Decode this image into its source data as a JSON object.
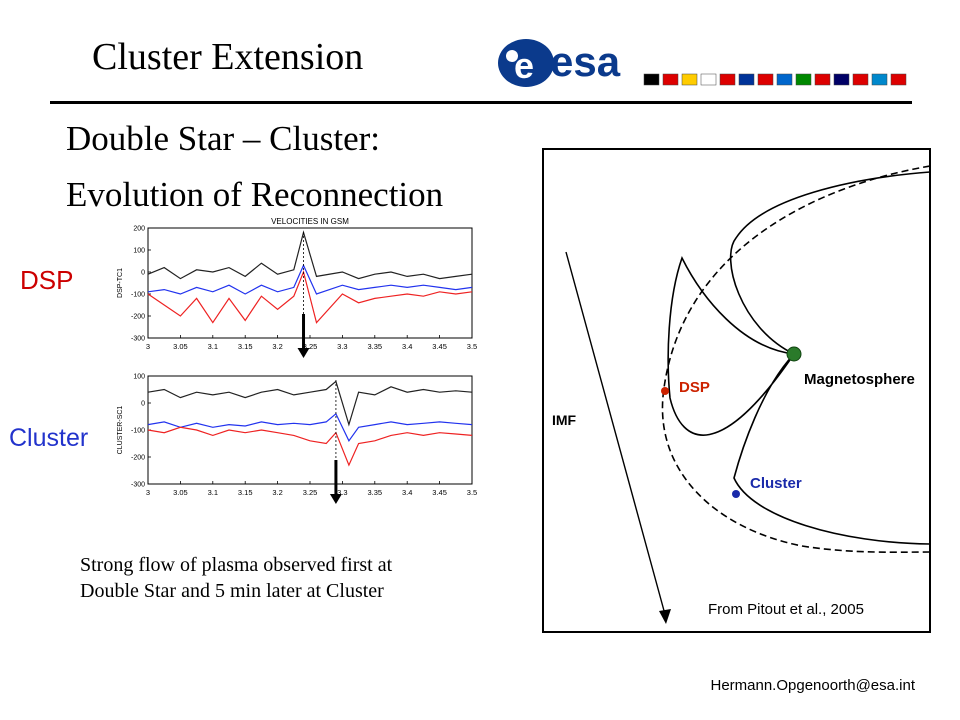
{
  "slide": {
    "title": "Cluster Extension",
    "subtitle_line1": "Double Star – Cluster:",
    "subtitle_line2": "Evolution of Reconnection",
    "caption_line1": "Strong flow of plasma observed first at",
    "caption_line2": "Double Star and 5 min later at Cluster",
    "footer_email": "Hermann.Opgenoorth@esa.int"
  },
  "logo": {
    "text": "esa",
    "color": "#0b3a8c"
  },
  "diagram": {
    "imf_label": "IMF",
    "dsp_label": "DSP",
    "cluster_label": "Cluster",
    "magnetosphere_label": "Magnetosphere",
    "credit": "From Pitout et al., 2005",
    "dsp_color": "#cc2200",
    "cluster_color": "#1a2aaa"
  },
  "chart_data": [
    {
      "type": "line",
      "panel_label": "DSP",
      "title": "VELOCITIES IN GSM",
      "ylabel": "DSP-TC1",
      "xlim": [
        3,
        3.5
      ],
      "ylim": [
        -300,
        200
      ],
      "xticks": [
        "3",
        "3.05",
        "3.1",
        "3.15",
        "3.2",
        "3.25",
        "3.3",
        "3.35",
        "3.4",
        "3.45",
        "3.5"
      ],
      "yticks": [
        "200",
        "100",
        "0",
        "-100",
        "-200",
        "-300"
      ],
      "x": [
        3.0,
        3.025,
        3.05,
        3.075,
        3.1,
        3.125,
        3.15,
        3.175,
        3.2,
        3.225,
        3.24,
        3.26,
        3.3,
        3.325,
        3.35,
        3.375,
        3.4,
        3.425,
        3.45,
        3.475,
        3.5
      ],
      "series": [
        {
          "color": "#222222",
          "values": [
            -10,
            20,
            -30,
            10,
            0,
            20,
            -20,
            40,
            -10,
            10,
            180,
            -20,
            0,
            -30,
            -10,
            0,
            -20,
            -10,
            -30,
            -20,
            -10
          ]
        },
        {
          "color": "#2233ee",
          "values": [
            -90,
            -80,
            -100,
            -70,
            -90,
            -60,
            -100,
            -60,
            -90,
            -70,
            30,
            -100,
            -60,
            -80,
            -70,
            -60,
            -70,
            -60,
            -70,
            -80,
            -70
          ]
        },
        {
          "color": "#ee2222",
          "values": [
            -100,
            -150,
            -200,
            -120,
            -230,
            -120,
            -220,
            -110,
            -170,
            -110,
            0,
            -230,
            -100,
            -140,
            -120,
            -110,
            -100,
            -110,
            -90,
            -100,
            -90
          ]
        }
      ],
      "arrow_x": 3.24
    },
    {
      "type": "line",
      "panel_label": "Cluster",
      "ylabel": "CLUSTER-SC1",
      "xlim": [
        3,
        3.5
      ],
      "ylim": [
        -300,
        100
      ],
      "xticks": [
        "3",
        "3.05",
        "3.1",
        "3.15",
        "3.2",
        "3.25",
        "3.3",
        "3.35",
        "3.4",
        "3.45",
        "3.5"
      ],
      "yticks": [
        "100",
        "0",
        "-100",
        "-200",
        "-300"
      ],
      "x": [
        3.0,
        3.025,
        3.05,
        3.075,
        3.1,
        3.125,
        3.15,
        3.175,
        3.2,
        3.225,
        3.25,
        3.275,
        3.29,
        3.31,
        3.325,
        3.35,
        3.375,
        3.4,
        3.425,
        3.45,
        3.475,
        3.5
      ],
      "series": [
        {
          "color": "#222222",
          "values": [
            40,
            50,
            20,
            40,
            30,
            40,
            20,
            40,
            50,
            30,
            40,
            50,
            80,
            -80,
            40,
            30,
            60,
            40,
            50,
            40,
            45,
            40
          ]
        },
        {
          "color": "#2233ee",
          "values": [
            -80,
            -70,
            -90,
            -75,
            -90,
            -80,
            -85,
            -70,
            -80,
            -75,
            -80,
            -70,
            -40,
            -140,
            -90,
            -80,
            -70,
            -80,
            -75,
            -70,
            -75,
            -80
          ]
        },
        {
          "color": "#ee2222",
          "values": [
            -100,
            -110,
            -90,
            -100,
            -120,
            -100,
            -110,
            -100,
            -110,
            -120,
            -140,
            -150,
            -110,
            -230,
            -150,
            -140,
            -120,
            -110,
            -120,
            -110,
            -115,
            -120
          ]
        }
      ],
      "arrow_x": 3.29
    }
  ]
}
